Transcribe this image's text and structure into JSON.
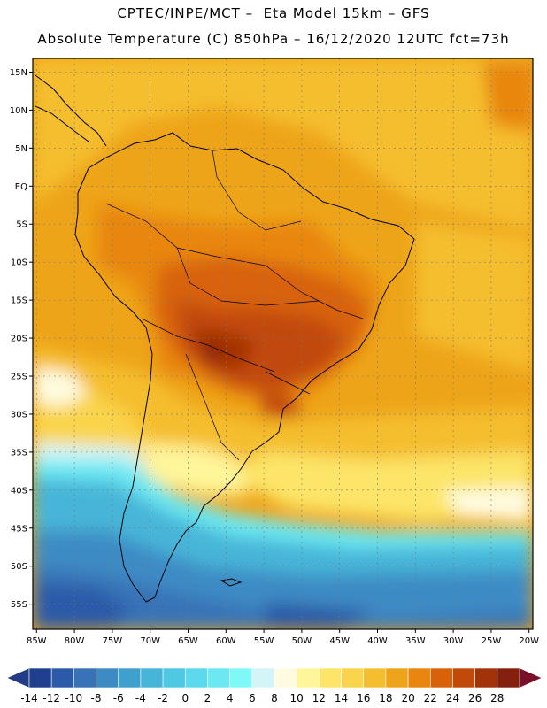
{
  "header": {
    "line1": "CPTEC/INPE/MCT –  Eta Model 15km – GFS",
    "line2": "Absolute Temperature (C) 850hPa – 16/12/2020 12UTC fct=73h"
  },
  "map": {
    "lat_labels": [
      "15N",
      "10N",
      "5N",
      "EQ",
      "5S",
      "10S",
      "15S",
      "20S",
      "25S",
      "30S",
      "35S",
      "40S",
      "45S",
      "50S",
      "55S"
    ],
    "lat_values": [
      15,
      10,
      5,
      0,
      -5,
      -10,
      -15,
      -20,
      -25,
      -30,
      -35,
      -40,
      -45,
      -50,
      -55
    ],
    "lon_labels": [
      "85W",
      "80W",
      "75W",
      "70W",
      "65W",
      "60W",
      "55W",
      "50W",
      "45W",
      "40W",
      "35W",
      "30W",
      "25W",
      "20W"
    ],
    "lon_values": [
      -85,
      -80,
      -75,
      -70,
      -65,
      -60,
      -55,
      -50,
      -45,
      -40,
      -35,
      -30,
      -25,
      -20
    ],
    "lat_range": [
      -58.3,
      16.8
    ],
    "lon_range": [
      -85.5,
      -19.5
    ]
  },
  "colorbar": {
    "labels": [
      "-14",
      "-12",
      "-10",
      "-8",
      "-6",
      "-4",
      "-2",
      "0",
      "2",
      "4",
      "6",
      "8",
      "10",
      "12",
      "14",
      "16",
      "18",
      "20",
      "22",
      "24",
      "26",
      "28"
    ],
    "colors": [
      "#1f3f8f",
      "#2b5aa8",
      "#3873b7",
      "#3c8bc4",
      "#3fa0cd",
      "#46b5d8",
      "#4fc8e3",
      "#5cd9ec",
      "#6ce8f2",
      "#7ff8f8",
      "#d4f5f7",
      "#fffbe0",
      "#fff59a",
      "#fce568",
      "#fad44c",
      "#f5be2e",
      "#eea419",
      "#e8860f",
      "#d8620a",
      "#c24a08",
      "#a33306",
      "#84200d"
    ],
    "under_color": "#233a86",
    "over_color": "#7a0f2a"
  }
}
